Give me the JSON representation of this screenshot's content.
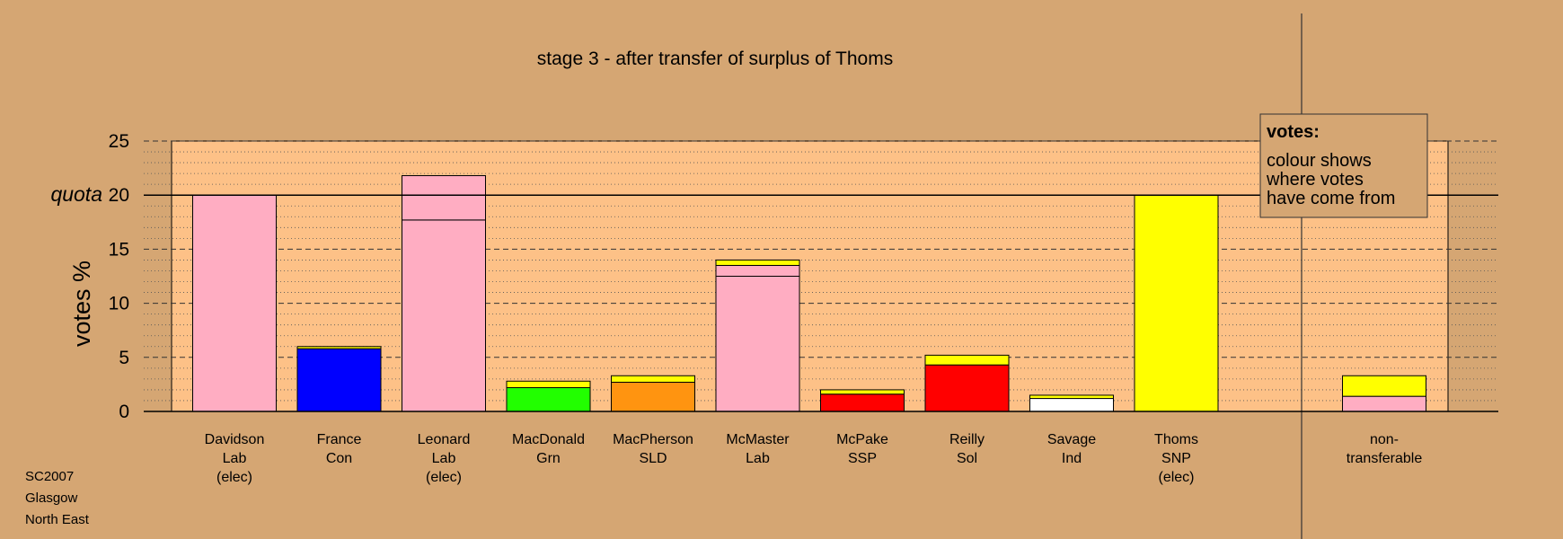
{
  "chart_data": {
    "type": "bar",
    "stacked": true,
    "title": "stage 3 - after transfer of surplus of Thoms",
    "ylabel": "votes %",
    "quota_label": "quota",
    "quota": 20,
    "ylim": [
      0,
      25
    ],
    "yticks": [
      0,
      5,
      10,
      15,
      20,
      25
    ],
    "legend": {
      "title": "votes:",
      "lines": [
        "colour shows",
        "where votes",
        "have come from"
      ],
      "position": "top-right"
    },
    "candidates": [
      {
        "name": "Davidson",
        "party": "Lab",
        "status": "(elec)",
        "segments": [
          {
            "value": 20.0,
            "color": "#ffadc2"
          }
        ]
      },
      {
        "name": "France",
        "party": "Con",
        "status": "",
        "segments": [
          {
            "value": 5.8,
            "color": "#0000ff"
          },
          {
            "value": 0.2,
            "color": "#ffff00"
          }
        ]
      },
      {
        "name": "Leonard",
        "party": "Lab",
        "status": "(elec)",
        "segments": [
          {
            "value": 17.7,
            "color": "#ffadc2"
          },
          {
            "value": 4.1,
            "color": "#ffadc2"
          }
        ]
      },
      {
        "name": "MacDonald",
        "party": "Grn",
        "status": "",
        "segments": [
          {
            "value": 2.2,
            "color": "#22ff00"
          },
          {
            "value": 0.6,
            "color": "#ffff00"
          }
        ]
      },
      {
        "name": "MacPherson",
        "party": "SLD",
        "status": "",
        "segments": [
          {
            "value": 2.7,
            "color": "#ff9410"
          },
          {
            "value": 0.6,
            "color": "#ffff00"
          }
        ]
      },
      {
        "name": "McMaster",
        "party": "Lab",
        "status": "",
        "segments": [
          {
            "value": 12.5,
            "color": "#ffadc2"
          },
          {
            "value": 1.0,
            "color": "#ffadc2"
          },
          {
            "value": 0.5,
            "color": "#ffff00"
          }
        ]
      },
      {
        "name": "McPake",
        "party": "SSP",
        "status": "",
        "segments": [
          {
            "value": 1.6,
            "color": "#ff0000"
          },
          {
            "value": 0.4,
            "color": "#ffff00"
          }
        ]
      },
      {
        "name": "Reilly",
        "party": "Sol",
        "status": "",
        "segments": [
          {
            "value": 4.3,
            "color": "#ff0000"
          },
          {
            "value": 0.9,
            "color": "#ffff00"
          }
        ]
      },
      {
        "name": "Savage",
        "party": "Ind",
        "status": "",
        "segments": [
          {
            "value": 1.2,
            "color": "#ffffff"
          },
          {
            "value": 0.3,
            "color": "#ffff00"
          }
        ]
      },
      {
        "name": "Thoms",
        "party": "SNP",
        "status": "(elec)",
        "segments": [
          {
            "value": 20.0,
            "color": "#ffff00"
          }
        ]
      }
    ],
    "nontransferable": {
      "label_lines": [
        "non-",
        "transferable"
      ],
      "segments": [
        {
          "value": 1.4,
          "color": "#ffadc2"
        },
        {
          "value": 1.9,
          "color": "#ffff00"
        }
      ]
    },
    "colors": {
      "background": "#d5a673",
      "plot_area": "#fdc187"
    }
  },
  "footer": {
    "line1": "SC2007",
    "line2": "Glasgow",
    "line3": "North East"
  }
}
